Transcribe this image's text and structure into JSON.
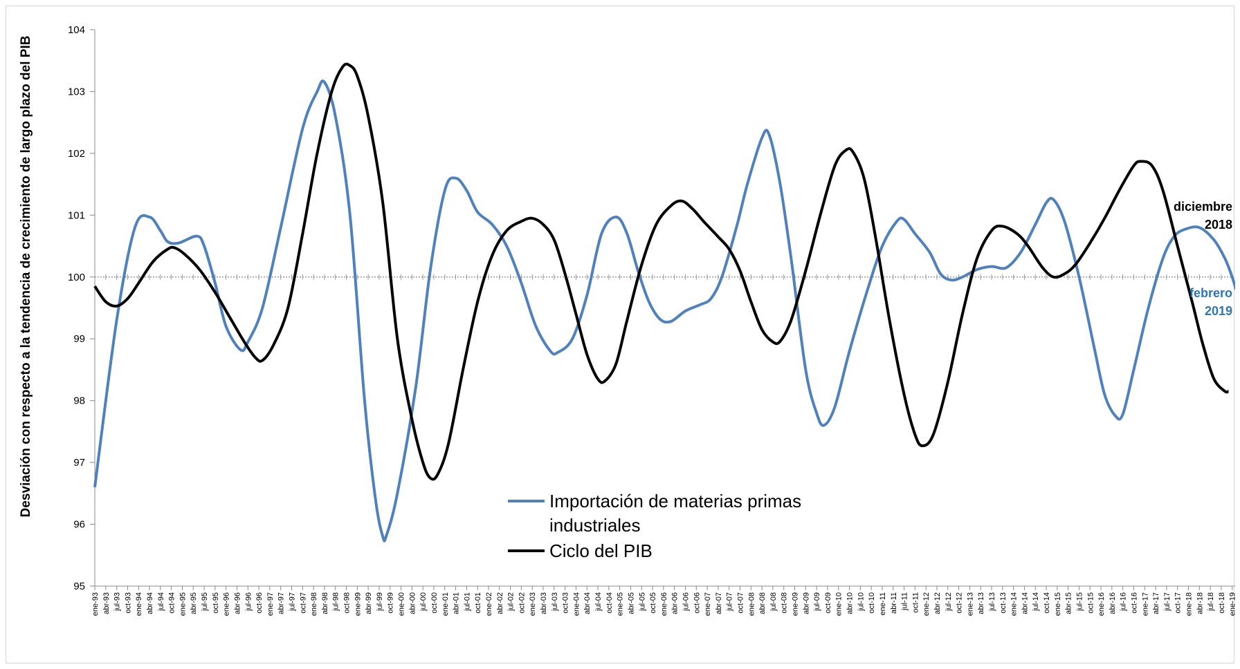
{
  "chart_data": {
    "type": "line",
    "title": "",
    "ylabel": "Desviación con respecto a la tendencia de crecimiento de largo plazo del PIB",
    "xlabel": "",
    "ylim": [
      95,
      104
    ],
    "yticks": [
      95,
      96,
      97,
      98,
      99,
      100,
      101,
      102,
      103,
      104
    ],
    "reference_line": 100,
    "x_start": "1993-01",
    "x_frequency": "monthly",
    "x_tick_step_months": 3,
    "x_tick_labels": [
      "ene-93",
      "abr-93",
      "jul-93",
      "oct-93",
      "ene-94",
      "abr-94",
      "jul-94",
      "oct-94",
      "ene-95",
      "abr-95",
      "jul-95",
      "oct-95",
      "ene-96",
      "abr-96",
      "jul-96",
      "oct-96",
      "ene-97",
      "abr-97",
      "jul-97",
      "oct-97",
      "ene-98",
      "abr-98",
      "jul-98",
      "oct-98",
      "ene-99",
      "abr-99",
      "jul-99",
      "oct-99",
      "ene-00",
      "abr-00",
      "jul-00",
      "oct-00",
      "ene-01",
      "abr-01",
      "jul-01",
      "oct-01",
      "ene-02",
      "abr-02",
      "jul-02",
      "oct-02",
      "ene-03",
      "abr-03",
      "jul-03",
      "oct-03",
      "ene-04",
      "abr-04",
      "jul-04",
      "oct-04",
      "ene-05",
      "abr-05",
      "jul-05",
      "oct-05",
      "ene-06",
      "abr-06",
      "jul-06",
      "oct-06",
      "ene-07",
      "abr-07",
      "jul-07",
      "oct-07",
      "ene-08",
      "abr-08",
      "jul-08",
      "oct-08",
      "ene-09",
      "abr-09",
      "jul-09",
      "oct-09",
      "ene-10",
      "abr-10",
      "jul-10",
      "oct-10",
      "ene-11",
      "abr-11",
      "jul-11",
      "oct-11",
      "ene-12",
      "abr-12",
      "jul-12",
      "oct-12",
      "ene-13",
      "abr-13",
      "jul-13",
      "oct-13",
      "ene-14",
      "abr-14",
      "jul-14",
      "oct-14",
      "ene-15",
      "abr-15",
      "jul-15",
      "oct-15",
      "ene-16",
      "abr-16",
      "jul-16",
      "oct-16",
      "ene-17",
      "abr-17",
      "jul-17",
      "oct-17",
      "ene-18",
      "abr-18",
      "jul-18",
      "oct-18",
      "ene-19"
    ],
    "series": [
      {
        "name": "Importación de materias primas industriales",
        "color": "#4f81bd",
        "end": "2019-02",
        "keypoints": [
          [
            "1993-01",
            96.6
          ],
          [
            "1993-07",
            99.3
          ],
          [
            "1993-12",
            100.8
          ],
          [
            "1994-04",
            100.97
          ],
          [
            "1994-07",
            100.75
          ],
          [
            "1994-09",
            100.57
          ],
          [
            "1994-12",
            100.55
          ],
          [
            "1995-05",
            100.66
          ],
          [
            "1995-07",
            100.5
          ],
          [
            "1995-10",
            99.9
          ],
          [
            "1996-01",
            99.2
          ],
          [
            "1996-05",
            98.82
          ],
          [
            "1996-07",
            98.95
          ],
          [
            "1996-11",
            99.5
          ],
          [
            "1997-04",
            100.8
          ],
          [
            "1997-10",
            102.4
          ],
          [
            "1998-02",
            103.0
          ],
          [
            "1998-04",
            103.15
          ],
          [
            "1998-07",
            102.6
          ],
          [
            "1998-11",
            101.0
          ],
          [
            "1999-03",
            98.0
          ],
          [
            "1999-06",
            96.4
          ],
          [
            "1999-08",
            95.8
          ],
          [
            "1999-09",
            95.82
          ],
          [
            "1999-12",
            96.5
          ],
          [
            "2000-05",
            98.2
          ],
          [
            "2000-09",
            100.1
          ],
          [
            "2001-01",
            101.4
          ],
          [
            "2001-04",
            101.6
          ],
          [
            "2001-07",
            101.4
          ],
          [
            "2001-10",
            101.05
          ],
          [
            "2002-02",
            100.85
          ],
          [
            "2002-06",
            100.5
          ],
          [
            "2002-10",
            99.9
          ],
          [
            "2003-02",
            99.2
          ],
          [
            "2003-06",
            98.8
          ],
          [
            "2003-08",
            98.78
          ],
          [
            "2003-12",
            99.0
          ],
          [
            "2004-04",
            99.7
          ],
          [
            "2004-08",
            100.7
          ],
          [
            "2004-12",
            100.97
          ],
          [
            "2005-03",
            100.7
          ],
          [
            "2005-06",
            100.1
          ],
          [
            "2005-09",
            99.6
          ],
          [
            "2005-12",
            99.32
          ],
          [
            "2006-03",
            99.28
          ],
          [
            "2006-07",
            99.45
          ],
          [
            "2006-11",
            99.55
          ],
          [
            "2007-02",
            99.65
          ],
          [
            "2007-05",
            100.0
          ],
          [
            "2007-09",
            100.8
          ],
          [
            "2007-12",
            101.5
          ],
          [
            "2008-04",
            102.25
          ],
          [
            "2008-06",
            102.3
          ],
          [
            "2008-09",
            101.5
          ],
          [
            "2008-12",
            100.3
          ],
          [
            "2009-04",
            98.5
          ],
          [
            "2009-07",
            97.8
          ],
          [
            "2009-09",
            97.6
          ],
          [
            "2009-12",
            97.9
          ],
          [
            "2010-04",
            98.8
          ],
          [
            "2010-09",
            99.8
          ],
          [
            "2011-01",
            100.5
          ],
          [
            "2011-05",
            100.9
          ],
          [
            "2011-07",
            100.93
          ],
          [
            "2011-10",
            100.7
          ],
          [
            "2012-02",
            100.4
          ],
          [
            "2012-05",
            100.05
          ],
          [
            "2012-08",
            99.95
          ],
          [
            "2012-11",
            100.0
          ],
          [
            "2013-03",
            100.12
          ],
          [
            "2013-07",
            100.17
          ],
          [
            "2013-11",
            100.15
          ],
          [
            "2014-03",
            100.4
          ],
          [
            "2014-07",
            100.85
          ],
          [
            "2014-10",
            101.2
          ],
          [
            "2014-12",
            101.25
          ],
          [
            "2015-03",
            100.9
          ],
          [
            "2015-07",
            100.0
          ],
          [
            "2015-11",
            98.9
          ],
          [
            "2016-02",
            98.1
          ],
          [
            "2016-05",
            97.75
          ],
          [
            "2016-07",
            97.78
          ],
          [
            "2016-10",
            98.5
          ],
          [
            "2017-02",
            99.5
          ],
          [
            "2017-06",
            100.3
          ],
          [
            "2017-09",
            100.65
          ],
          [
            "2017-12",
            100.77
          ],
          [
            "2018-04",
            100.8
          ],
          [
            "2018-08",
            100.6
          ],
          [
            "2018-11",
            100.3
          ],
          [
            "2019-01",
            100.0
          ],
          [
            "2019-02",
            99.8
          ]
        ]
      },
      {
        "name": "Ciclo del PIB",
        "color": "#000000",
        "end": "2018-12",
        "keypoints": [
          [
            "1993-01",
            99.85
          ],
          [
            "1993-04",
            99.6
          ],
          [
            "1993-07",
            99.53
          ],
          [
            "1993-10",
            99.65
          ],
          [
            "1994-01",
            99.9
          ],
          [
            "1994-05",
            100.25
          ],
          [
            "1994-09",
            100.45
          ],
          [
            "1994-11",
            100.47
          ],
          [
            "1995-02",
            100.35
          ],
          [
            "1995-06",
            100.1
          ],
          [
            "1995-10",
            99.75
          ],
          [
            "1996-02",
            99.35
          ],
          [
            "1996-06",
            98.95
          ],
          [
            "1996-09",
            98.7
          ],
          [
            "1996-11",
            98.65
          ],
          [
            "1997-02",
            98.9
          ],
          [
            "1997-06",
            99.5
          ],
          [
            "1997-10",
            100.7
          ],
          [
            "1998-02",
            102.0
          ],
          [
            "1998-06",
            103.0
          ],
          [
            "1998-09",
            103.4
          ],
          [
            "1998-11",
            103.42
          ],
          [
            "1999-01",
            103.25
          ],
          [
            "1999-04",
            102.6
          ],
          [
            "1999-08",
            101.2
          ],
          [
            "1999-12",
            99.0
          ],
          [
            "2000-04",
            97.7
          ],
          [
            "2000-07",
            97.0
          ],
          [
            "2000-09",
            96.75
          ],
          [
            "2000-11",
            96.8
          ],
          [
            "2001-02",
            97.3
          ],
          [
            "2001-06",
            98.5
          ],
          [
            "2001-10",
            99.6
          ],
          [
            "2002-02",
            100.35
          ],
          [
            "2002-06",
            100.75
          ],
          [
            "2002-10",
            100.9
          ],
          [
            "2003-01",
            100.95
          ],
          [
            "2003-04",
            100.85
          ],
          [
            "2003-07",
            100.6
          ],
          [
            "2003-10",
            100.05
          ],
          [
            "2004-01",
            99.4
          ],
          [
            "2004-04",
            98.75
          ],
          [
            "2004-07",
            98.35
          ],
          [
            "2004-09",
            98.32
          ],
          [
            "2004-12",
            98.6
          ],
          [
            "2005-03",
            99.3
          ],
          [
            "2005-07",
            100.2
          ],
          [
            "2005-11",
            100.85
          ],
          [
            "2006-03",
            101.15
          ],
          [
            "2006-06",
            101.23
          ],
          [
            "2006-09",
            101.1
          ],
          [
            "2006-12",
            100.9
          ],
          [
            "2007-04",
            100.65
          ],
          [
            "2007-07",
            100.45
          ],
          [
            "2007-10",
            100.1
          ],
          [
            "2008-01",
            99.6
          ],
          [
            "2008-04",
            99.15
          ],
          [
            "2008-07",
            98.95
          ],
          [
            "2008-09",
            98.96
          ],
          [
            "2008-12",
            99.3
          ],
          [
            "2009-04",
            100.1
          ],
          [
            "2009-08",
            101.0
          ],
          [
            "2009-12",
            101.8
          ],
          [
            "2010-03",
            102.05
          ],
          [
            "2010-05",
            102.02
          ],
          [
            "2010-08",
            101.6
          ],
          [
            "2010-11",
            100.7
          ],
          [
            "2011-03",
            99.3
          ],
          [
            "2011-07",
            98.1
          ],
          [
            "2011-10",
            97.45
          ],
          [
            "2011-12",
            97.27
          ],
          [
            "2012-03",
            97.45
          ],
          [
            "2012-07",
            98.3
          ],
          [
            "2012-11",
            99.4
          ],
          [
            "2013-03",
            100.3
          ],
          [
            "2013-07",
            100.75
          ],
          [
            "2013-10",
            100.82
          ],
          [
            "2014-02",
            100.7
          ],
          [
            "2014-05",
            100.5
          ],
          [
            "2014-09",
            100.15
          ],
          [
            "2014-12",
            100.0
          ],
          [
            "2015-03",
            100.05
          ],
          [
            "2015-06",
            100.2
          ],
          [
            "2015-10",
            100.55
          ],
          [
            "2016-02",
            100.95
          ],
          [
            "2016-06",
            101.4
          ],
          [
            "2016-10",
            101.8
          ],
          [
            "2016-12",
            101.87
          ],
          [
            "2017-03",
            101.8
          ],
          [
            "2017-06",
            101.4
          ],
          [
            "2017-10",
            100.5
          ],
          [
            "2018-02",
            99.6
          ],
          [
            "2018-05",
            98.9
          ],
          [
            "2018-08",
            98.35
          ],
          [
            "2018-11",
            98.15
          ],
          [
            "2018-12",
            98.15
          ]
        ]
      }
    ],
    "legend": {
      "placement": "center-bottom",
      "entries": [
        "Importación de materias primas industriales",
        "Ciclo del PIB"
      ]
    },
    "annotations": [
      {
        "text": "diciembre",
        "text2": "2018",
        "color": "#000000",
        "series": "Ciclo del PIB"
      },
      {
        "text": "febrero",
        "text2": "2019",
        "color": "#2e75b6",
        "series": "Importación de materias primas industriales"
      }
    ]
  }
}
